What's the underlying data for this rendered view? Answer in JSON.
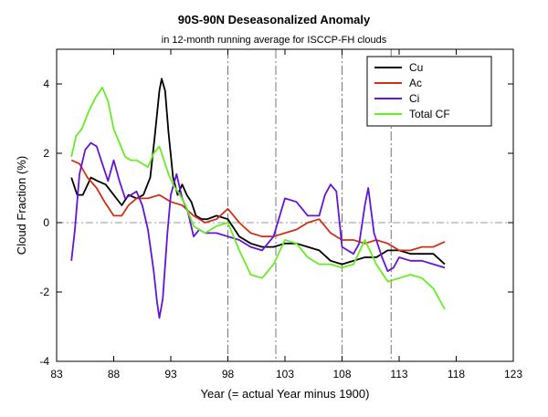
{
  "chart_data": {
    "type": "line",
    "title": "90S-90N Deseasonalized Anomaly",
    "subtitle": "in 12-month running average for ISCCP-FH clouds",
    "xlabel": "Year (= actual Year minus 1900)",
    "ylabel": "Cloud Fraction (%)",
    "xlim": [
      83,
      123
    ],
    "ylim": [
      -4,
      5
    ],
    "xticks": [
      83,
      88,
      93,
      98,
      103,
      108,
      113,
      118,
      123
    ],
    "yticks": [
      -4,
      -2,
      0,
      2,
      4
    ],
    "reference_lines": {
      "horizontal": [
        0
      ],
      "vertical": [
        98,
        102.2,
        108,
        112.3
      ]
    },
    "legend_position": "top-right",
    "series": [
      {
        "name": "Cu",
        "color": "#000000",
        "x": [
          84.3,
          84.8,
          85.3,
          86,
          86.6,
          87.3,
          88,
          88.7,
          89.3,
          90,
          90.6,
          91.2,
          91.6,
          92,
          92.2,
          92.5,
          92.8,
          93.2,
          93.6,
          94,
          94.4,
          94.8,
          95.2,
          95.7,
          96.2,
          97,
          98,
          99,
          100,
          101,
          102,
          103,
          104,
          105,
          106,
          107,
          108,
          109,
          110,
          111,
          112,
          113,
          114,
          115,
          116,
          117
        ],
        "y": [
          1.3,
          0.8,
          0.8,
          1.3,
          1.2,
          1.1,
          0.8,
          0.5,
          0.8,
          0.7,
          0.8,
          1.3,
          2.5,
          3.8,
          4.15,
          3.8,
          2.6,
          1.3,
          0.8,
          1.1,
          0.8,
          0.6,
          0.2,
          0.1,
          0.1,
          0.2,
          0.1,
          -0.4,
          -0.6,
          -0.7,
          -0.7,
          -0.6,
          -0.6,
          -0.7,
          -0.8,
          -1.1,
          -1.2,
          -1.1,
          -1.0,
          -1.0,
          -0.8,
          -0.8,
          -0.9,
          -0.9,
          -0.9,
          -1.2
        ]
      },
      {
        "name": "Ac",
        "color": "#d03018",
        "x": [
          84.3,
          85,
          85.7,
          86.5,
          87.2,
          88,
          88.7,
          89.3,
          90,
          91,
          92,
          93,
          94,
          95,
          96,
          97,
          98,
          98.5,
          99,
          100,
          101,
          102,
          103,
          104,
          105,
          106,
          107,
          108,
          109,
          110,
          111,
          112,
          113,
          114,
          115,
          116,
          117
        ],
        "y": [
          1.8,
          1.7,
          1.3,
          1.0,
          0.6,
          0.2,
          0.2,
          0.5,
          0.7,
          0.7,
          0.8,
          0.6,
          0.5,
          0.2,
          0.0,
          0.1,
          0.4,
          0.2,
          0.0,
          -0.3,
          -0.4,
          -0.4,
          -0.3,
          -0.2,
          0.0,
          0.1,
          -0.3,
          -0.5,
          -0.5,
          -0.6,
          -0.5,
          -0.6,
          -0.8,
          -0.8,
          -0.7,
          -0.7,
          -0.55
        ]
      },
      {
        "name": "Ci",
        "color": "#6414d8",
        "x": [
          84.3,
          84.6,
          85,
          85.5,
          86,
          86.5,
          87,
          87.5,
          88,
          88.5,
          89,
          89.5,
          90,
          90.5,
          91,
          91.5,
          91.8,
          92,
          92.3,
          92.7,
          93,
          93.5,
          94,
          94.5,
          95,
          95.5,
          96,
          97,
          98,
          99,
          100,
          101,
          102,
          103,
          104,
          105,
          106,
          106.5,
          107,
          107.5,
          108,
          108.5,
          109,
          109.5,
          110,
          110.3,
          110.8,
          111.5,
          112,
          112.5,
          113,
          114,
          115,
          116,
          117
        ],
        "y": [
          -1.1,
          -0.2,
          1.4,
          2.1,
          2.3,
          2.2,
          1.7,
          1.2,
          1.8,
          1.2,
          0.7,
          0.8,
          0.9,
          0.5,
          -0.2,
          -1.4,
          -2.3,
          -2.75,
          -2.2,
          -0.3,
          0.8,
          1.4,
          0.7,
          0.3,
          -0.4,
          -0.2,
          -0.3,
          -0.3,
          -0.4,
          -0.5,
          -0.7,
          -0.8,
          -0.4,
          0.7,
          0.6,
          0.2,
          0.2,
          0.8,
          1.1,
          0.9,
          -0.7,
          -0.8,
          -0.9,
          -0.6,
          0.5,
          1.0,
          -0.3,
          -1.0,
          -1.4,
          -1.3,
          -1.0,
          -1.1,
          -1.1,
          -1.2,
          -1.3
        ]
      },
      {
        "name": "Total CF",
        "color": "#66ee22",
        "x": [
          84.3,
          84.7,
          85.2,
          85.8,
          86.4,
          87,
          87.5,
          88,
          88.5,
          89,
          89.5,
          90,
          90.5,
          91,
          91.5,
          92,
          92.4,
          92.8,
          93.2,
          93.8,
          94.3,
          95,
          95.5,
          96,
          96.5,
          97,
          98,
          99,
          100,
          101,
          102,
          103,
          104,
          105,
          106,
          107,
          108,
          109,
          110,
          111,
          112,
          113,
          114,
          115,
          116,
          117
        ],
        "y": [
          1.9,
          2.5,
          2.7,
          3.2,
          3.6,
          3.9,
          3.5,
          2.7,
          2.3,
          1.9,
          1.8,
          1.8,
          1.7,
          1.6,
          2.0,
          2.2,
          1.8,
          1.4,
          1.1,
          0.8,
          0.5,
          -0.1,
          -0.2,
          -0.3,
          -0.2,
          -0.1,
          0.0,
          -0.8,
          -1.5,
          -1.6,
          -1.2,
          -0.5,
          -0.6,
          -1.0,
          -1.2,
          -1.2,
          -1.3,
          -1.2,
          -0.5,
          -1.2,
          -1.7,
          -1.6,
          -1.5,
          -1.6,
          -1.9,
          -2.5
        ]
      }
    ]
  }
}
